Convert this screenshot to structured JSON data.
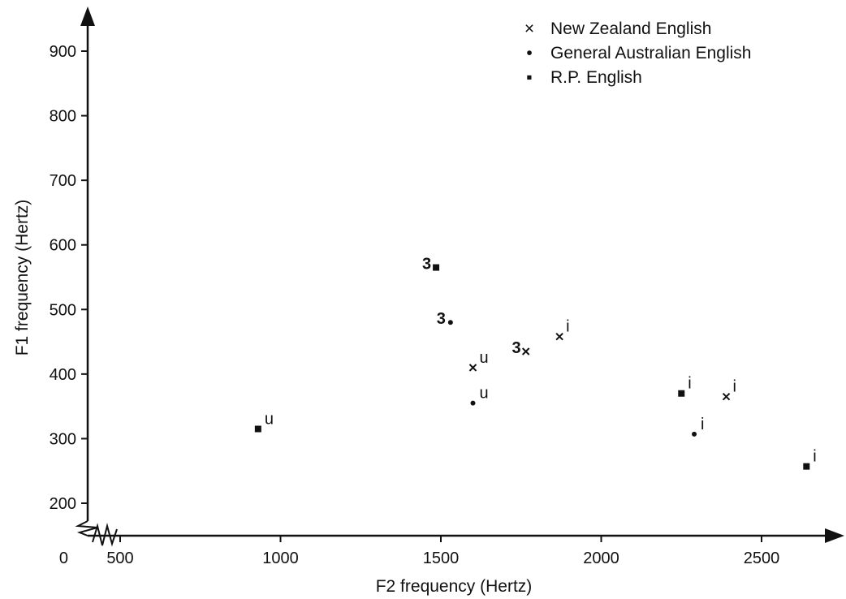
{
  "chart_data": {
    "type": "scatter",
    "xlabel": "F2 frequency (Hertz)",
    "ylabel": "F1 frequency (Hertz)",
    "origin_label": "0",
    "xlim": [
      500,
      2750
    ],
    "ylim": [
      200,
      950
    ],
    "x_ticks": [
      500,
      1000,
      1500,
      2000,
      2500
    ],
    "y_ticks": [
      200,
      300,
      400,
      500,
      600,
      700,
      800,
      900
    ],
    "grid": false,
    "legend_position": "top-right",
    "series": [
      {
        "name": "New Zealand English",
        "marker": "cross",
        "glyph": "×",
        "points": [
          {
            "x": 1600,
            "y": 410,
            "label": "u"
          },
          {
            "x": 1765,
            "y": 435,
            "label": "3"
          },
          {
            "x": 1870,
            "y": 458,
            "label": "i"
          },
          {
            "x": 2390,
            "y": 365,
            "label": "i"
          }
        ]
      },
      {
        "name": "General Australian English",
        "marker": "dot",
        "glyph": "•",
        "points": [
          {
            "x": 1530,
            "y": 480,
            "label": "3"
          },
          {
            "x": 1600,
            "y": 355,
            "label": "u"
          },
          {
            "x": 2290,
            "y": 307,
            "label": "i"
          }
        ]
      },
      {
        "name": "R.P. English",
        "marker": "square",
        "glyph": "▪",
        "points": [
          {
            "x": 1485,
            "y": 565,
            "label": "3"
          },
          {
            "x": 2250,
            "y": 370,
            "label": "i"
          },
          {
            "x": 2640,
            "y": 257,
            "label": "i"
          },
          {
            "x": 930,
            "y": 315,
            "label": "u"
          }
        ]
      }
    ]
  }
}
